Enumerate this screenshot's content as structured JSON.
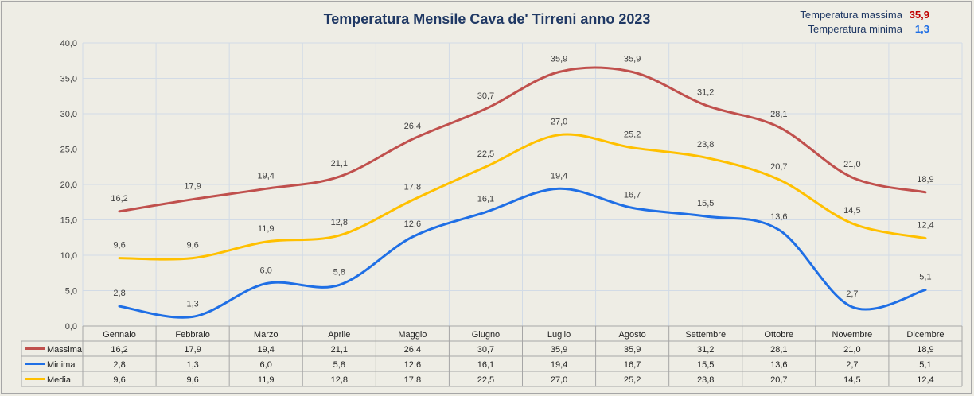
{
  "title": "Temperatura Mensile Cava de' Tirreni anno 2023",
  "extremes": {
    "max_label": "Temperatura massima",
    "max_value": "35,9",
    "max_color": "#c00000",
    "min_label": "Temperatura minima",
    "min_value": "1,3",
    "min_color": "#1f6fe5"
  },
  "chart_data": {
    "type": "line",
    "title": "Temperatura Mensile Cava de' Tirreni anno 2023",
    "xlabel": "",
    "ylabel": "",
    "ylim": [
      0,
      40
    ],
    "y_ticks": [
      0,
      5,
      10,
      15,
      20,
      25,
      30,
      35,
      40
    ],
    "grid": true,
    "smooth": true,
    "decimal_separator": ",",
    "categories": [
      "Gennaio",
      "Febbraio",
      "Marzo",
      "Aprile",
      "Maggio",
      "Giugno",
      "Luglio",
      "Agosto",
      "Settembre",
      "Ottobre",
      "Novembre",
      "Dicembre"
    ],
    "series": [
      {
        "name": "Massima",
        "color": "#c0504d",
        "values": [
          16.2,
          17.9,
          19.4,
          21.1,
          26.4,
          30.7,
          35.9,
          35.9,
          31.2,
          28.1,
          21.0,
          18.9
        ]
      },
      {
        "name": "Minima",
        "color": "#1f6fe5",
        "values": [
          2.8,
          1.3,
          6.0,
          5.8,
          12.6,
          16.1,
          19.4,
          16.7,
          15.5,
          13.6,
          2.7,
          5.1
        ]
      },
      {
        "name": "Media",
        "color": "#ffc000",
        "values": [
          9.6,
          9.6,
          11.9,
          12.8,
          17.8,
          22.5,
          27.0,
          25.2,
          23.8,
          20.7,
          14.5,
          12.4
        ]
      }
    ],
    "data_table": true
  }
}
